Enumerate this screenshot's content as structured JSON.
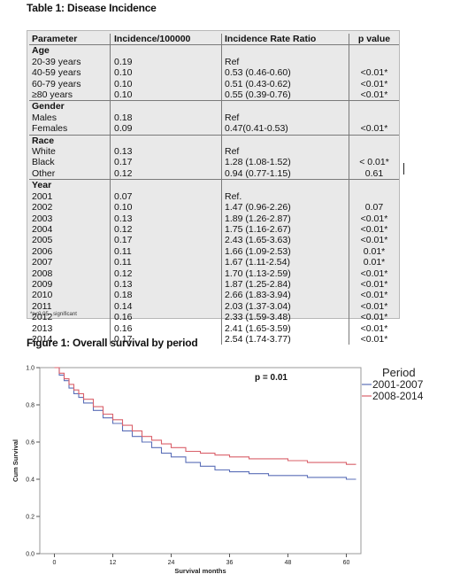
{
  "table_title": "Table 1: Disease Incidence",
  "table": {
    "headers": [
      "Parameter",
      "Incidence/100000",
      "Incidence Rate Ratio",
      "p value"
    ],
    "rows": [
      {
        "type": "group",
        "label": "Age"
      },
      {
        "type": "data",
        "cells": [
          "20-39 years",
          "0.19",
          "Ref",
          ""
        ]
      },
      {
        "type": "data",
        "cells": [
          "40-59 years",
          "0.10",
          "0.53 (0.46-0.60)",
          "<0.01*"
        ]
      },
      {
        "type": "data",
        "cells": [
          "60-79 years",
          "0.10",
          "0.51 (0.43-0.62)",
          "<0.01*"
        ]
      },
      {
        "type": "data",
        "cells": [
          "≥80 years",
          "0.10",
          "0.55 (0.39-0.76)",
          "<0.01*"
        ]
      },
      {
        "type": "group",
        "label": "Gender"
      },
      {
        "type": "data",
        "cells": [
          "Males",
          "0.18",
          "Ref",
          ""
        ]
      },
      {
        "type": "data",
        "cells": [
          "Females",
          "0.09",
          "0.47(0.41-0.53)",
          "<0.01*"
        ]
      },
      {
        "type": "group",
        "label": "Race"
      },
      {
        "type": "data",
        "cells": [
          "White",
          "0.13",
          "Ref",
          ""
        ]
      },
      {
        "type": "data",
        "cells": [
          "Black",
          "0.17",
          "1.28 (1.08-1.52)",
          "< 0.01*"
        ]
      },
      {
        "type": "data",
        "cells": [
          "Other",
          "0.12",
          "0.94 (0.77-1.15)",
          "0.61"
        ]
      },
      {
        "type": "group",
        "label": "Year"
      },
      {
        "type": "data",
        "cells": [
          "2001",
          "0.07",
          "Ref.",
          ""
        ]
      },
      {
        "type": "data",
        "cells": [
          "2002",
          "0.10",
          "1.47 (0.96-2.26)",
          "0.07"
        ]
      },
      {
        "type": "data",
        "cells": [
          "2003",
          "0.13",
          "1.89 (1.26-2.87)",
          "<0.01*"
        ]
      },
      {
        "type": "data",
        "cells": [
          "2004",
          "0.12",
          "1.75 (1.16-2.67)",
          "<0.01*"
        ]
      },
      {
        "type": "data",
        "cells": [
          "2005",
          "0.17",
          "2.43 (1.65-3.63)",
          "<0.01*"
        ]
      },
      {
        "type": "data",
        "cells": [
          "2006",
          "0.11",
          "1.66 (1.09-2.53)",
          "0.01*"
        ]
      },
      {
        "type": "data",
        "cells": [
          "2007",
          "0.11",
          "1.67 (1.11-2.54)",
          "0.01*"
        ]
      },
      {
        "type": "data",
        "cells": [
          "2008",
          "0.12",
          "1.70 (1.13-2.59)",
          "<0.01*"
        ]
      },
      {
        "type": "data",
        "cells": [
          "2009",
          "0.13",
          "1.87 (1.25-2.84)",
          "<0.01*"
        ]
      },
      {
        "type": "data",
        "cells": [
          "2010",
          "0.18",
          "2.66 (1.83-3.94)",
          "<0.01*"
        ]
      },
      {
        "type": "data",
        "cells": [
          "2011",
          "0.14",
          "2.03 (1.37-3.04)",
          "<0.01*"
        ]
      },
      {
        "type": "data",
        "cells": [
          "2012",
          "0.16",
          "2.33 (1.59-3.48)",
          "<0.01*"
        ]
      },
      {
        "type": "data",
        "cells": [
          "2013",
          "0.16",
          "2.41 (1.65-3.59)",
          "<0.01*"
        ]
      },
      {
        "type": "data",
        "cells": [
          "2014",
          "0.17",
          "2.54 (1.74-3.77)",
          "<0.01*"
        ]
      }
    ],
    "footnote": "*p<0.05 - significant"
  },
  "figure_title": "Figure 1: Overall survival by period",
  "chart_data": {
    "type": "line",
    "annotation": "p = 0.01",
    "xlabel": "Survival months",
    "ylabel": "Cum Survival",
    "xlim": [
      -3,
      63
    ],
    "ylim": [
      0,
      1.0
    ],
    "x_ticks": [
      0,
      12,
      24,
      36,
      48,
      60
    ],
    "y_ticks": [
      0.0,
      0.2,
      0.4,
      0.6,
      0.8,
      1.0
    ],
    "y_tick_labels": [
      "0.0",
      "0.2",
      "0.4",
      "0.6",
      "0.8",
      "1.0"
    ],
    "grid": false,
    "legend_title": "Period",
    "legend_position": "top-right",
    "series": [
      {
        "name": "2001-2007",
        "color": "#5b6fb8",
        "points": [
          [
            0,
            1.0
          ],
          [
            1,
            0.96
          ],
          [
            2,
            0.93
          ],
          [
            3,
            0.89
          ],
          [
            4,
            0.86
          ],
          [
            5,
            0.84
          ],
          [
            6,
            0.81
          ],
          [
            8,
            0.77
          ],
          [
            10,
            0.73
          ],
          [
            12,
            0.7
          ],
          [
            14,
            0.66
          ],
          [
            16,
            0.63
          ],
          [
            18,
            0.6
          ],
          [
            20,
            0.57
          ],
          [
            22,
            0.54
          ],
          [
            24,
            0.52
          ],
          [
            27,
            0.49
          ],
          [
            30,
            0.47
          ],
          [
            33,
            0.45
          ],
          [
            36,
            0.44
          ],
          [
            40,
            0.43
          ],
          [
            44,
            0.42
          ],
          [
            48,
            0.42
          ],
          [
            52,
            0.41
          ],
          [
            56,
            0.41
          ],
          [
            60,
            0.4
          ],
          [
            62,
            0.4
          ]
        ]
      },
      {
        "name": "2008-2014",
        "color": "#d9606a",
        "points": [
          [
            0,
            1.0
          ],
          [
            1,
            0.97
          ],
          [
            2,
            0.94
          ],
          [
            3,
            0.91
          ],
          [
            4,
            0.88
          ],
          [
            5,
            0.86
          ],
          [
            6,
            0.83
          ],
          [
            8,
            0.79
          ],
          [
            10,
            0.75
          ],
          [
            12,
            0.72
          ],
          [
            14,
            0.69
          ],
          [
            16,
            0.66
          ],
          [
            18,
            0.63
          ],
          [
            20,
            0.61
          ],
          [
            22,
            0.59
          ],
          [
            24,
            0.57
          ],
          [
            27,
            0.55
          ],
          [
            30,
            0.54
          ],
          [
            33,
            0.53
          ],
          [
            36,
            0.52
          ],
          [
            40,
            0.51
          ],
          [
            44,
            0.51
          ],
          [
            48,
            0.5
          ],
          [
            52,
            0.49
          ],
          [
            56,
            0.49
          ],
          [
            60,
            0.48
          ],
          [
            62,
            0.48
          ]
        ]
      }
    ]
  }
}
